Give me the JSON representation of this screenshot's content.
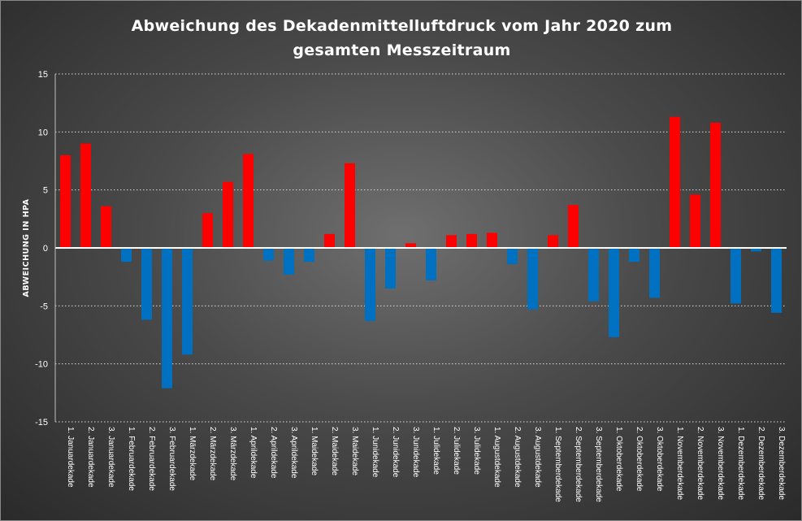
{
  "chart_data": {
    "type": "bar",
    "title": "Abweichung des Dekadenmittelluftdruck vom Jahr 2020 zum gesamten Messzeitraum",
    "title_lines": [
      "Abweichung des Dekadenmittelluftdruck  vom Jahr 2020 zum",
      "gesamten Messzeitraum"
    ],
    "xlabel": "",
    "ylabel": "ABWEICHUNG IN HPA",
    "ylim": [
      -15,
      15
    ],
    "yticks": [
      15,
      10,
      5,
      0,
      -5,
      -10,
      -15
    ],
    "grid": true,
    "legend": "none",
    "positive_color": "#ff0000",
    "negative_color": "#0070c0",
    "categories": [
      "1. Januardekade",
      "2. Januardekade",
      "3. Januardekade",
      "1. Februardekade",
      "2. Februardekade",
      "3. Februardekade",
      "1. Märzdekade",
      "2. Märzdekade",
      "3. Märzdekade",
      "1. Aprildekade",
      "2. Aprildekade",
      "3. Aprildekade",
      "1. Maidekade",
      "2. Maidekade",
      "3. Maidekade",
      "1. Junidekade",
      "2. Junidekade",
      "3. Junidekade",
      "1. Julidekade",
      "2. Julidekade",
      "3. Julidekade",
      "1. Augustdekade",
      "2. Augustdekade",
      "3. Augustdekade",
      "1. Septemberdekade",
      "2. Septemberdekade",
      "3. Septemberdekade",
      "1. Oktoberdekade",
      "2. Oktoberdekade",
      "3. Oktoberdekade",
      "1. Novemberdekade",
      "2. Novemberdekade",
      "3. Novemberdekade",
      "1. Dezemberdekade",
      "2. Dezemberdekade",
      "3. Dezemberdekade"
    ],
    "values": [
      8.0,
      9.0,
      3.6,
      -1.2,
      -6.2,
      -12.1,
      -9.2,
      3.0,
      5.7,
      8.1,
      -1.1,
      -2.3,
      -1.2,
      1.2,
      7.3,
      -6.3,
      -3.5,
      0.4,
      -2.8,
      1.1,
      1.2,
      1.3,
      -1.4,
      -5.3,
      1.1,
      3.7,
      -4.6,
      -7.7,
      -1.2,
      -4.3,
      11.3,
      4.6,
      10.8,
      -4.8,
      -0.3,
      -5.6
    ]
  }
}
